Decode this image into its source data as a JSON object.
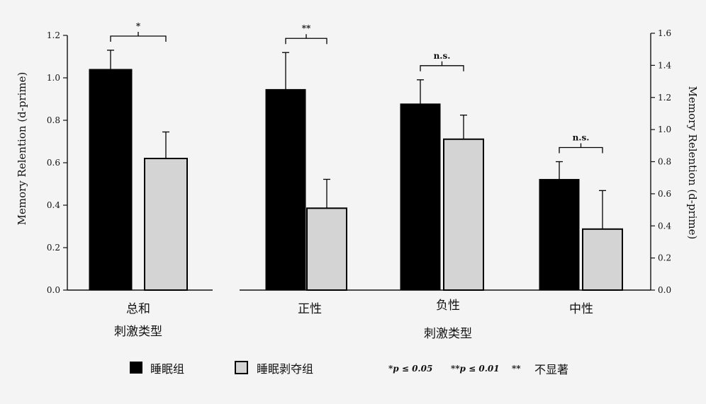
{
  "chart_data": [
    {
      "type": "bar",
      "ylabel": "Memory Relention (d-prime)",
      "ylim": [
        0,
        1.2
      ],
      "yticks": [
        "0.0",
        "0.2",
        "0.4",
        "0.6",
        "0.8",
        "1.0",
        "1.2"
      ],
      "categories": [
        "总和"
      ],
      "xlabel": "刺激类型",
      "series": [
        {
          "name": "睡眠组",
          "color": "#000000",
          "values": [
            1.04
          ],
          "errors": [
            0.09
          ]
        },
        {
          "name": "睡眠剥夺组",
          "color": "#d4d4d4",
          "values": [
            0.62
          ],
          "errors": [
            0.125
          ]
        }
      ],
      "significance": [
        "*"
      ]
    },
    {
      "type": "bar",
      "ylabel": "Memory Relention (d-prime)",
      "ylim": [
        0,
        1.6
      ],
      "yticks": [
        "0.0",
        "0.2",
        "0.4",
        "0.6",
        "0.8",
        "1.0",
        "1.2",
        "1.4",
        "1.6"
      ],
      "categories": [
        "正性",
        "负性",
        "中性"
      ],
      "xlabel": "刺激类型",
      "series": [
        {
          "name": "睡眠组",
          "color": "#000000",
          "values": [
            1.25,
            1.16,
            0.69
          ],
          "errors": [
            0.23,
            0.15,
            0.11
          ]
        },
        {
          "name": "睡眠剥夺组",
          "color": "#d4d4d4",
          "values": [
            0.51,
            0.94,
            0.38
          ],
          "errors": [
            0.18,
            0.15,
            0.24
          ]
        }
      ],
      "significance": [
        "**",
        "n.s.",
        "n.s."
      ]
    }
  ],
  "legend": {
    "items": [
      "睡眠组",
      "睡眠剥夺组"
    ],
    "note_p05": "*p ≤ 0.05",
    "note_p01": "**p ≤ 0.01",
    "note_ns_mark": "**",
    "note_ns_text": "不显著"
  }
}
